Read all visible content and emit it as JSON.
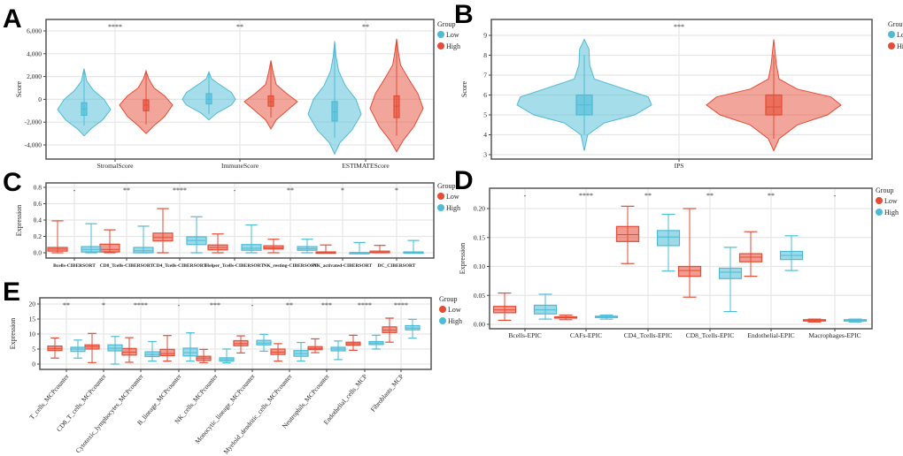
{
  "colors": {
    "blue": "#4DBBD5",
    "red": "#E64B35"
  },
  "chart_data": [
    {
      "id": "A",
      "panel_label": "A",
      "type": "violin",
      "ylabel": "Score",
      "ylim": [
        -5000,
        7000
      ],
      "yticks": [
        -4000,
        -2000,
        0,
        2000,
        4000,
        6000
      ],
      "ytick_labels": [
        "-4,000",
        "-2,000",
        "0",
        "2,000",
        "4,000",
        "6,000"
      ],
      "legend": {
        "title": "Group",
        "placement": "right",
        "entries": [
          {
            "label": "Low",
            "color": "#4DBBD5"
          },
          {
            "label": "High",
            "color": "#E64B35"
          }
        ]
      },
      "categories": [
        "StromalScore",
        "ImmuneScore",
        "ESTIMATEScore"
      ],
      "significance": [
        "****",
        "**",
        "**"
      ],
      "series": [
        {
          "name": "Low",
          "color": "#4DBBD5",
          "items": [
            {
              "min": -2300,
              "q1": -1400,
              "median": -850,
              "q3": -300,
              "max": 2700,
              "profile": [
                [
                  -3200,
                  0
                ],
                [
                  -2600,
                  0.25
                ],
                [
                  -1800,
                  0.7
                ],
                [
                  -900,
                  1
                ],
                [
                  0,
                  0.75
                ],
                [
                  800,
                  0.35
                ],
                [
                  1600,
                  0.1
                ],
                [
                  2700,
                  0
                ]
              ]
            },
            {
              "min": -1300,
              "q1": -400,
              "median": 0,
              "q3": 500,
              "max": 2400,
              "profile": [
                [
                  -1800,
                  0
                ],
                [
                  -1200,
                  0.3
                ],
                [
                  -500,
                  0.85
                ],
                [
                  0,
                  1
                ],
                [
                  600,
                  0.85
                ],
                [
                  1300,
                  0.4
                ],
                [
                  1800,
                  0.1
                ],
                [
                  2400,
                  0
                ]
              ]
            },
            {
              "min": -3400,
              "q1": -1900,
              "median": -1100,
              "q3": -200,
              "max": 5100,
              "profile": [
                [
                  -4800,
                  0
                ],
                [
                  -3800,
                  0.2
                ],
                [
                  -2700,
                  0.65
                ],
                [
                  -1300,
                  1
                ],
                [
                  0,
                  0.8
                ],
                [
                  1200,
                  0.4
                ],
                [
                  2500,
                  0.15
                ],
                [
                  3800,
                  0.05
                ],
                [
                  5100,
                  0
                ]
              ]
            }
          ]
        },
        {
          "name": "High",
          "color": "#E64B35",
          "items": [
            {
              "min": -2200,
              "q1": -1000,
              "median": -500,
              "q3": -50,
              "max": 2500,
              "profile": [
                [
                  -3000,
                  0
                ],
                [
                  -2300,
                  0.3
                ],
                [
                  -1500,
                  0.7
                ],
                [
                  -500,
                  1
                ],
                [
                  300,
                  0.7
                ],
                [
                  1000,
                  0.3
                ],
                [
                  1800,
                  0.1
                ],
                [
                  2500,
                  0
                ]
              ]
            },
            {
              "min": -1600,
              "q1": -600,
              "median": -200,
              "q3": 300,
              "max": 3400,
              "profile": [
                [
                  -2600,
                  0
                ],
                [
                  -1800,
                  0.2
                ],
                [
                  -1000,
                  0.6
                ],
                [
                  -200,
                  1
                ],
                [
                  500,
                  0.6
                ],
                [
                  1300,
                  0.2
                ],
                [
                  2400,
                  0.08
                ],
                [
                  3400,
                  0
                ]
              ]
            },
            {
              "min": -3200,
              "q1": -1600,
              "median": -600,
              "q3": 300,
              "max": 5300,
              "profile": [
                [
                  -4600,
                  0
                ],
                [
                  -3600,
                  0.25
                ],
                [
                  -2400,
                  0.65
                ],
                [
                  -800,
                  1
                ],
                [
                  500,
                  0.8
                ],
                [
                  1800,
                  0.45
                ],
                [
                  3000,
                  0.15
                ],
                [
                  4200,
                  0.06
                ],
                [
                  5300,
                  0
                ]
              ]
            }
          ]
        }
      ]
    },
    {
      "id": "B",
      "panel_label": "B",
      "type": "violin",
      "ylabel": "Score",
      "ylim": [
        3,
        9.5
      ],
      "yticks": [
        3,
        4,
        5,
        6,
        7,
        8,
        9
      ],
      "ytick_labels": [
        "3",
        "4",
        "5",
        "6",
        "7",
        "8",
        "9"
      ],
      "legend": {
        "title": "Group",
        "placement": "right",
        "entries": [
          {
            "label": "Low",
            "color": "#4DBBD5"
          },
          {
            "label": "High",
            "color": "#E64B35"
          }
        ]
      },
      "categories": [
        "IPS"
      ],
      "significance": [
        "***"
      ],
      "series": [
        {
          "name": "Low",
          "color": "#4DBBD5",
          "items": [
            {
              "min": 4,
              "q1": 5,
              "median": 5.5,
              "q3": 6,
              "max": 8,
              "profile": [
                [
                  3.2,
                  0
                ],
                [
                  4,
                  0.05
                ],
                [
                  4.6,
                  0.3
                ],
                [
                  5,
                  0.75
                ],
                [
                  5.5,
                  1
                ],
                [
                  5.9,
                  0.95
                ],
                [
                  6.3,
                  0.6
                ],
                [
                  6.8,
                  0.15
                ],
                [
                  7.5,
                  0.08
                ],
                [
                  8.3,
                  0.07
                ],
                [
                  8.8,
                  0
                ]
              ]
            }
          ]
        },
        {
          "name": "High",
          "color": "#E64B35",
          "items": [
            {
              "min": 3.8,
              "q1": 5,
              "median": 5.4,
              "q3": 6,
              "max": 8,
              "profile": [
                [
                  3.2,
                  0
                ],
                [
                  3.8,
                  0.08
                ],
                [
                  4.5,
                  0.35
                ],
                [
                  5,
                  0.8
                ],
                [
                  5.5,
                  1
                ],
                [
                  5.9,
                  0.85
                ],
                [
                  6.3,
                  0.35
                ],
                [
                  6.8,
                  0.08
                ],
                [
                  7.5,
                  0.04
                ],
                [
                  8.8,
                  0
                ]
              ]
            }
          ]
        }
      ]
    },
    {
      "id": "C",
      "panel_label": "C",
      "type": "box",
      "ylabel": "Expression",
      "ylim": [
        0,
        0.8
      ],
      "yticks": [
        0,
        0.2,
        0.4,
        0.6,
        0.8
      ],
      "ytick_labels": [
        "0.0",
        "0.2",
        "0.4",
        "0.6",
        "0.8"
      ],
      "legend": {
        "title": "Group",
        "placement": "right",
        "entries": [
          {
            "label": "Low",
            "color": "#E64B35"
          },
          {
            "label": "High",
            "color": "#4DBBD5"
          }
        ]
      },
      "categories": [
        "Bcells-CIBERSORT",
        "CD8_Tcells-CIBERSORT",
        "CD4_Tcells-CIBERSORT",
        "Helper_Tcells-CIBERSORT",
        "NK_resting-CIBERSORT",
        "NK_activated-CIBERSORT",
        "DC_CIBERSORT"
      ],
      "significance": [
        "-",
        "**",
        "****",
        "-",
        "**",
        "*",
        "*"
      ],
      "series": [
        {
          "name": "Low",
          "color": "#E64B35",
          "items": [
            [
              0,
              0.02,
              0.045,
              0.065,
              0.39
            ],
            [
              0,
              0.01,
              0.04,
              0.105,
              0.28
            ],
            [
              0,
              0.145,
              0.185,
              0.24,
              0.54
            ],
            [
              0,
              0.035,
              0.065,
              0.095,
              0.23
            ],
            [
              0,
              0.045,
              0.06,
              0.085,
              0.165
            ],
            [
              0,
              0,
              0,
              0.01,
              0.095
            ],
            [
              0,
              0,
              0.005,
              0.02,
              0.09
            ]
          ]
        },
        {
          "name": "High",
          "color": "#4DBBD5",
          "items": [
            [
              0,
              0.01,
              0.04,
              0.075,
              0.355
            ],
            [
              0,
              0,
              0.025,
              0.065,
              0.325
            ],
            [
              0,
              0.1,
              0.15,
              0.195,
              0.44
            ],
            [
              0,
              0.03,
              0.055,
              0.1,
              0.34
            ],
            [
              0,
              0.03,
              0.05,
              0.075,
              0.165
            ],
            [
              0,
              0,
              0,
              0.003,
              0.125
            ],
            [
              0,
              0,
              0,
              0.01,
              0.15
            ]
          ]
        }
      ]
    },
    {
      "id": "D",
      "panel_label": "D",
      "type": "box",
      "ylabel": "Expression",
      "ylim": [
        0,
        0.22
      ],
      "yticks": [
        0,
        0.05,
        0.1,
        0.15,
        0.2
      ],
      "ytick_labels": [
        "0.00",
        "0.05",
        "0.10",
        "0.15",
        "0.20"
      ],
      "legend": {
        "title": "Group",
        "placement": "right",
        "entries": [
          {
            "label": "Low",
            "color": "#E64B35"
          },
          {
            "label": "High",
            "color": "#4DBBD5"
          }
        ]
      },
      "categories": [
        "Bcells-EPIC",
        "CAFs-EPIC",
        "CD4_Tcells-EPIC",
        "CD8_Tcells-EPIC",
        "Endothelial-EPIC",
        "Macrophages-EPIC"
      ],
      "significance": [
        "-",
        "****",
        "**",
        "**",
        "**",
        "-"
      ],
      "series": [
        {
          "name": "Low",
          "color": "#E64B35",
          "items": [
            [
              0.007,
              0.02,
              0.025,
              0.031,
              0.054
            ],
            [
              0.008,
              0.011,
              0.012,
              0.013,
              0.016
            ],
            [
              0.105,
              0.143,
              0.155,
              0.169,
              0.204
            ],
            [
              0.047,
              0.083,
              0.093,
              0.1,
              0.2
            ],
            [
              0.083,
              0.108,
              0.116,
              0.122,
              0.16
            ],
            [
              0.004,
              0.006,
              0.007,
              0.008,
              0.009
            ]
          ]
        },
        {
          "name": "High",
          "color": "#4DBBD5",
          "items": [
            [
              0.009,
              0.018,
              0.025,
              0.033,
              0.052
            ],
            [
              0.009,
              0.012,
              0.013,
              0.014,
              0.016
            ],
            [
              0.092,
              0.136,
              0.151,
              0.162,
              0.19
            ],
            [
              0.022,
              0.079,
              0.09,
              0.097,
              0.133
            ],
            [
              0.093,
              0.112,
              0.119,
              0.126,
              0.153
            ],
            [
              0.004,
              0.006,
              0.007,
              0.008,
              0.009
            ]
          ]
        }
      ]
    },
    {
      "id": "E",
      "panel_label": "E",
      "type": "box",
      "ylabel": "Expression",
      "ylim": [
        0,
        20
      ],
      "yticks": [
        0,
        5,
        10,
        15,
        20
      ],
      "ytick_labels": [
        "0",
        "5",
        "10",
        "15",
        "20"
      ],
      "legend": {
        "title": "Group",
        "placement": "right",
        "entries": [
          {
            "label": "Low",
            "color": "#E64B35"
          },
          {
            "label": "High",
            "color": "#4DBBD5"
          }
        ]
      },
      "categories": [
        "T_cells_MCPcounter",
        "CD8_T_cells_MCPcounter",
        "Cytotoxic_lymphocytes_MCPcounter",
        "B_lineage_MCPcounter",
        "NK_cells_MCPcounter",
        "Monocytic_lineage_MCPcounter",
        "Myeloid_dendritic_cells_MCPcounter",
        "Neutrophils_MCPcounter",
        "Endothelial_cells_MCP",
        "Fibroblasts_MCP"
      ],
      "significance": [
        "**",
        "*",
        "****",
        "-",
        "***",
        "-",
        "**",
        "***",
        "****",
        "****"
      ],
      "series": [
        {
          "name": "Low",
          "color": "#E64B35",
          "items": [
            [
              2,
              4.5,
              5.2,
              6,
              8.7
            ],
            [
              0.5,
              5,
              5.8,
              6.4,
              10.2
            ],
            [
              0.6,
              3,
              4,
              5.2,
              8.8
            ],
            [
              1,
              2.8,
              3.5,
              4.9,
              9.5
            ],
            [
              0.5,
              1.2,
              2,
              2.6,
              4.9
            ],
            [
              3.7,
              6.1,
              6.8,
              7.8,
              9.4
            ],
            [
              1,
              3.2,
              4,
              5,
              6.8
            ],
            [
              3.8,
              4.8,
              5.2,
              5.8,
              8.4
            ],
            [
              4.6,
              6.3,
              6.8,
              7.3,
              9.6
            ],
            [
              7.3,
              10.5,
              11.3,
              12.4,
              15.3
            ]
          ]
        },
        {
          "name": "High",
          "color": "#4DBBD5",
          "items": [
            [
              2,
              4.2,
              5,
              5.6,
              8
            ],
            [
              0,
              4.4,
              5.3,
              6.4,
              9.2
            ],
            [
              1,
              2.5,
              3.2,
              4.1,
              7.5
            ],
            [
              1,
              2.7,
              3.8,
              5.3,
              10.4
            ],
            [
              0.4,
              1,
              1.5,
              2.1,
              5
            ],
            [
              4.3,
              6.4,
              7,
              7.9,
              9.9
            ],
            [
              1,
              2.6,
              3.5,
              4.5,
              7.2
            ],
            [
              1.5,
              4.4,
              5,
              5.6,
              7.7
            ],
            [
              5,
              6.5,
              7,
              7.5,
              9.6
            ],
            [
              8.6,
              11.4,
              12,
              12.8,
              14.9
            ]
          ]
        }
      ]
    }
  ]
}
